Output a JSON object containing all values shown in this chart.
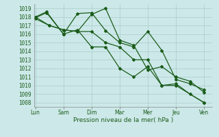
{
  "background_color": "#cce8e8",
  "grid_color": "#aacccc",
  "line_color": "#1a5c1a",
  "x_labels": [
    "Lun",
    "Sam",
    "Dim",
    "Mar",
    "Mer",
    "Jeu",
    "Ven"
  ],
  "x_ticks": [
    0,
    1,
    2,
    3,
    4,
    5,
    6
  ],
  "xlabel": "Pression niveau de la mer( hPa )",
  "ylim": [
    1007.5,
    1019.5
  ],
  "yticks": [
    1008,
    1009,
    1010,
    1011,
    1012,
    1013,
    1014,
    1015,
    1016,
    1017,
    1018,
    1019
  ],
  "line1_x": [
    0.0,
    0.5,
    1.0,
    1.5,
    2.0,
    2.5,
    3.0,
    3.5,
    4.0,
    4.5,
    5.0,
    6.0
  ],
  "line1_y": [
    1018.0,
    1017.0,
    1016.5,
    1016.3,
    1016.3,
    1015.0,
    1014.5,
    1013.0,
    1013.0,
    1010.0,
    1010.0,
    1008.0
  ],
  "line2_x": [
    0.0,
    0.5,
    1.0,
    1.5,
    2.0,
    2.5,
    3.0,
    3.5,
    4.0,
    4.5,
    5.0,
    5.5,
    6.0
  ],
  "line2_y": [
    1017.8,
    1017.0,
    1016.5,
    1016.3,
    1018.3,
    1019.0,
    1015.3,
    1014.7,
    1011.8,
    1012.2,
    1011.0,
    1010.5,
    1009.2
  ],
  "line3_x": [
    0.0,
    0.4,
    1.0,
    1.5,
    2.0,
    2.5,
    3.0,
    3.5,
    4.0,
    4.5,
    5.0,
    5.5,
    6.0
  ],
  "line3_y": [
    1017.9,
    1018.5,
    1016.0,
    1018.4,
    1018.5,
    1016.4,
    1015.0,
    1014.5,
    1016.3,
    1014.1,
    1010.7,
    1010.2,
    1009.5
  ],
  "line4_x": [
    0.0,
    0.4,
    1.0,
    1.5,
    2.0,
    2.5,
    3.0,
    3.5,
    4.0,
    4.5,
    5.0,
    5.5,
    6.0
  ],
  "line4_y": [
    1018.0,
    1018.6,
    1016.0,
    1016.5,
    1014.5,
    1014.5,
    1012.0,
    1011.0,
    1012.2,
    1010.0,
    1010.2,
    1009.0,
    1008.0
  ],
  "xlim": [
    -0.05,
    6.3
  ],
  "tick_fontsize": 5.5,
  "xlabel_fontsize": 6.5,
  "linewidth": 0.9,
  "markersize": 2.0
}
